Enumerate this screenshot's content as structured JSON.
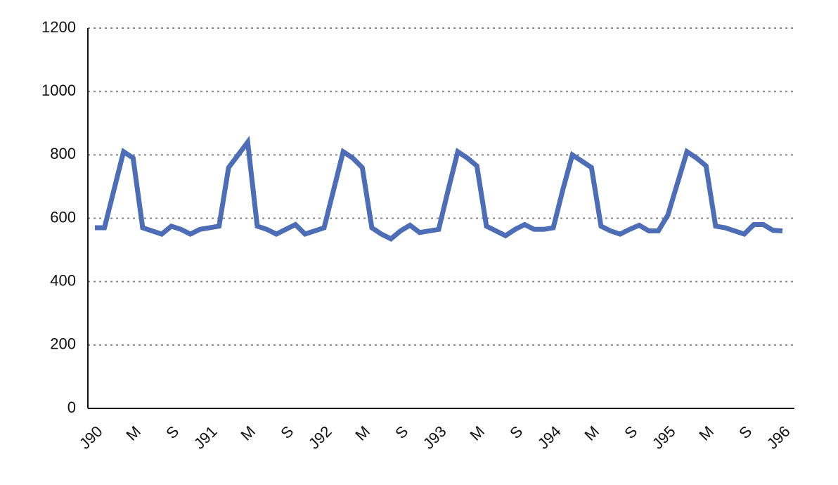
{
  "chart_data": {
    "type": "line",
    "categories": [
      "J90",
      null,
      null,
      null,
      "M",
      null,
      null,
      null,
      "S",
      null,
      null,
      null,
      "J91",
      null,
      null,
      null,
      "M",
      null,
      null,
      null,
      "S",
      null,
      null,
      null,
      "J92",
      null,
      null,
      null,
      "M",
      null,
      null,
      null,
      "S",
      null,
      null,
      null,
      "J93",
      null,
      null,
      null,
      "M",
      null,
      null,
      null,
      "S",
      null,
      null,
      null,
      "J94",
      null,
      null,
      null,
      "M",
      null,
      null,
      null,
      "S",
      null,
      null,
      null,
      "J95",
      null,
      null,
      null,
      "M",
      null,
      null,
      null,
      "S",
      null,
      null,
      null,
      "J96"
    ],
    "series": [
      {
        "color": "#4e6db7",
        "values": [
          570,
          570,
          690,
          810,
          790,
          570,
          560,
          550,
          575,
          565,
          550,
          565,
          570,
          575,
          760,
          800,
          840,
          575,
          565,
          550,
          565,
          580,
          550,
          560,
          570,
          690,
          810,
          790,
          760,
          570,
          550,
          535,
          560,
          578,
          555,
          560,
          565,
          690,
          810,
          790,
          765,
          575,
          560,
          545,
          565,
          580,
          565,
          565,
          570,
          690,
          800,
          780,
          760,
          575,
          560,
          550,
          565,
          578,
          560,
          560,
          610,
          710,
          810,
          790,
          765,
          575,
          570,
          560,
          550,
          580,
          580,
          562,
          560
        ]
      }
    ],
    "ylim": [
      0,
      1200
    ],
    "yticks": [
      0,
      200,
      400,
      600,
      800,
      1000,
      1200
    ],
    "grid": true
  }
}
